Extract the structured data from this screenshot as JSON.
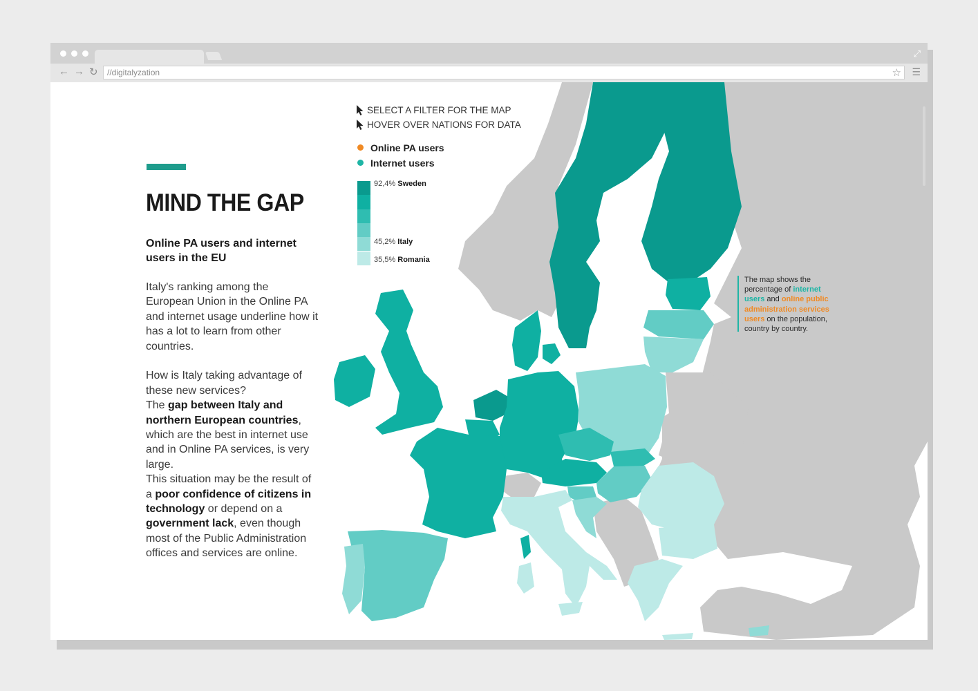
{
  "browser": {
    "url": "//digitalyzation"
  },
  "sidebar": {
    "title": "MIND THE GAP",
    "subtitle": "Online PA users and internet users in the EU",
    "para1": "Italy's ranking among the European Union in the Online PA and internet usage underline how it has a lot to learn from other countries.",
    "para2": [
      {
        "t": "How is Italy taking advantage of these new services?",
        "b": false,
        "br": true
      },
      {
        "t": "The ",
        "b": false
      },
      {
        "t": "gap between Italy and northern European countries",
        "b": true
      },
      {
        "t": ", which are the best in internet use and in Online PA services, is very large.",
        "b": false,
        "br": true
      },
      {
        "t": "This situation may be the result of a ",
        "b": false
      },
      {
        "t": "poor confidence of citizens in technology",
        "b": true
      },
      {
        "t": " or depend on a ",
        "b": false
      },
      {
        "t": "government lack",
        "b": true
      },
      {
        "t": ", even though most of the Public Administration offices and services are online.",
        "b": false
      }
    ]
  },
  "map": {
    "hint1": "SELECT A FILTER FOR THE MAP",
    "hint2": "HOVER OVER NATIONS FOR DATA",
    "filters": [
      {
        "label": "Online PA users",
        "color": "#f08a24"
      },
      {
        "label": "Internet users",
        "color": "#1eb5a5"
      }
    ],
    "legend": [
      {
        "value": "92,4%",
        "country": "Sweden"
      },
      {
        "value": "45,2%",
        "country": "Italy"
      },
      {
        "value": "35,5%",
        "country": "Romania"
      }
    ],
    "legend_colors": [
      "#0a9a8e",
      "#0fb0a2",
      "#2fbdb1",
      "#62ccc5",
      "#8fdbd6",
      "#bdeae7"
    ],
    "info": [
      {
        "t": "The map shows the percentage of ",
        "c": ""
      },
      {
        "t": "internet users",
        "c": "teal"
      },
      {
        "t": " and ",
        "c": ""
      },
      {
        "t": "online public administration services users",
        "c": "orange"
      },
      {
        "t": " on the population, country by country.",
        "c": ""
      }
    ]
  }
}
